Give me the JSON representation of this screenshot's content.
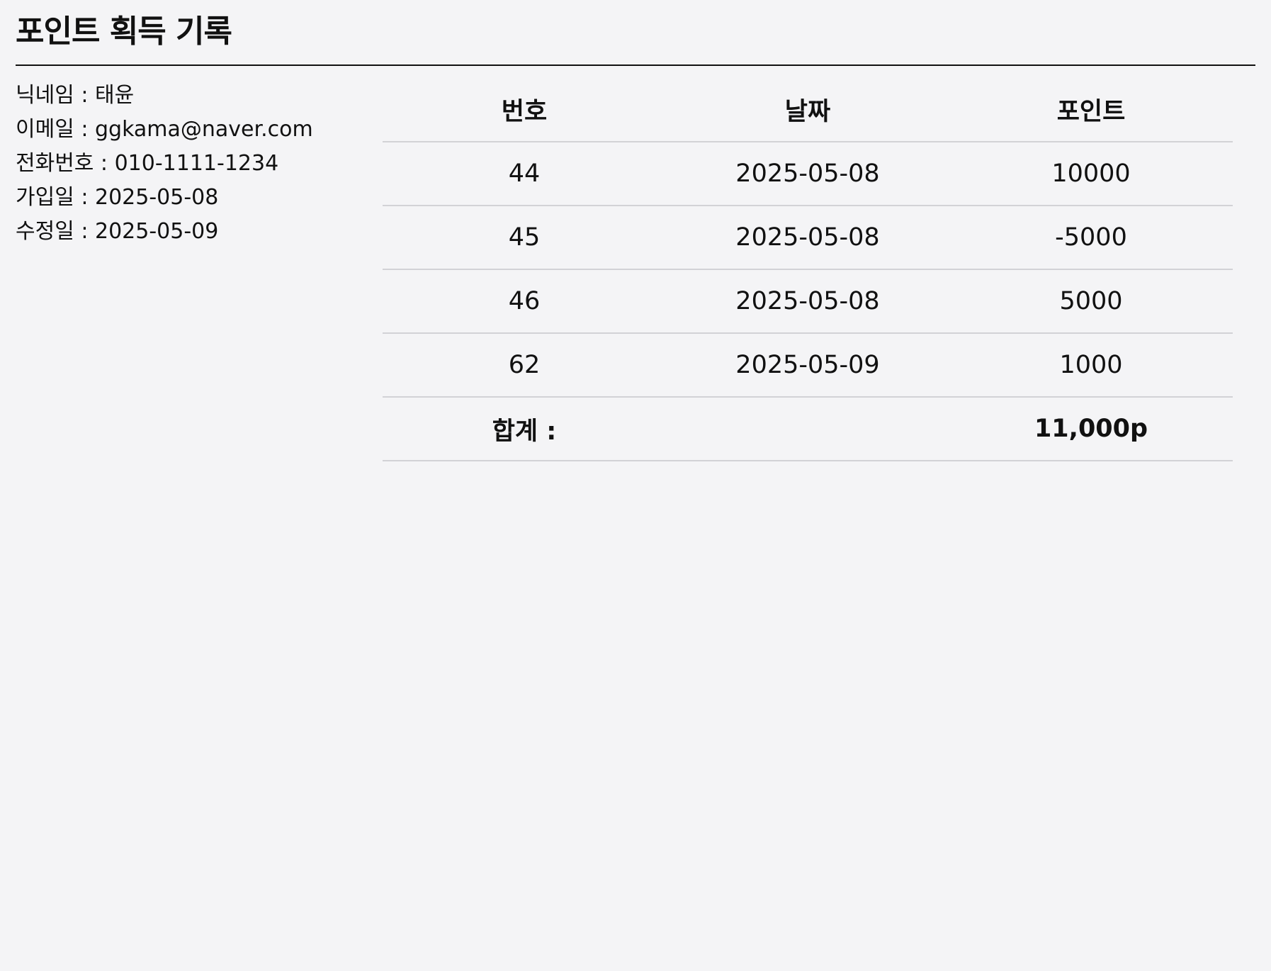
{
  "page": {
    "title": "포인트 획득 기록"
  },
  "profile": {
    "nickname": "닉네임 : 태윤",
    "email": "이메일 : ggkama@naver.com",
    "phone": "전화번호 : 010-1111-1234",
    "joined": "가입일 : 2025-05-08",
    "modified": "수정일 : 2025-05-09"
  },
  "table": {
    "headers": [
      "번호",
      "날짜",
      "포인트"
    ],
    "rows": [
      {
        "number": "44",
        "date": "2025-05-08",
        "points": "10000"
      },
      {
        "number": "45",
        "date": "2025-05-08",
        "points": "-5000"
      },
      {
        "number": "46",
        "date": "2025-05-08",
        "points": "5000"
      },
      {
        "number": "62",
        "date": "2025-05-09",
        "points": "1000"
      }
    ],
    "total_label": "합계 :",
    "total_value": "11,000p"
  }
}
